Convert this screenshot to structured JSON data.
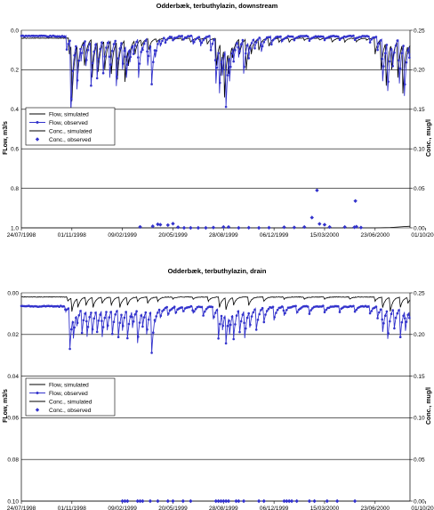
{
  "chart_data": [
    {
      "type": "line",
      "title": "Odderbæk, terbuthylazin, downstream",
      "ylabel": "FLow, m3/s",
      "y2label": "Conc., mug/l",
      "ylim": [
        0.0,
        1.0
      ],
      "y_inverted": true,
      "y_ticks": [
        "0.0",
        "0.2",
        "0.4",
        "0.6",
        "0.8",
        "1.0"
      ],
      "y2lim": [
        0.0,
        0.25
      ],
      "y2_ticks": [
        "0.25",
        "0.20",
        "0.15",
        "0.10",
        "0.05",
        "0.00"
      ],
      "x_ticks": [
        "24/07/1998",
        "01/11/1998",
        "09/02/1999",
        "20/05/1999",
        "28/08/1999",
        "06/12/1999",
        "15/03/2000",
        "23/06/2000",
        "01/10/2000"
      ],
      "grid": "horizontal",
      "legend_position": "left-middle",
      "series": [
        {
          "name": "Flow, simulated",
          "axis": "left",
          "color": "#000000",
          "baseline": 0.04,
          "events": [
            [
              95,
              0.12
            ],
            [
              100,
              0.36
            ],
            [
              112,
              0.22
            ],
            [
              125,
              0.18
            ],
            [
              140,
              0.24
            ],
            [
              152,
              0.21
            ],
            [
              165,
              0.2
            ],
            [
              178,
              0.22
            ],
            [
              190,
              0.25
            ],
            [
              205,
              0.26
            ],
            [
              212,
              0.18
            ],
            [
              225,
              0.12
            ],
            [
              238,
              0.08
            ],
            [
              252,
              0.1
            ],
            [
              268,
              0.06
            ],
            [
              285,
              0.05
            ],
            [
              300,
              0.05
            ],
            [
              318,
              0.05
            ],
            [
              335,
              0.06
            ],
            [
              352,
              0.05
            ],
            [
              368,
              0.07
            ],
            [
              386,
              0.18
            ],
            [
              395,
              0.23
            ],
            [
              402,
              0.34
            ],
            [
              410,
              0.22
            ],
            [
              418,
              0.14
            ],
            [
              432,
              0.12
            ],
            [
              445,
              0.2
            ],
            [
              455,
              0.12
            ],
            [
              470,
              0.1
            ],
            [
              490,
              0.08
            ],
            [
              510,
              0.06
            ],
            [
              530,
              0.06
            ],
            [
              560,
              0.05
            ],
            [
              590,
              0.05
            ],
            [
              615,
              0.06
            ],
            [
              640,
              0.06
            ],
            [
              663,
              0.06
            ],
            [
              683,
              0.05
            ],
            [
              700,
              0.12
            ],
            [
              712,
              0.2
            ],
            [
              722,
              0.28
            ],
            [
              733,
              0.2
            ],
            [
              745,
              0.24
            ],
            [
              755,
              0.32
            ],
            [
              765,
              0.12
            ]
          ]
        },
        {
          "name": "Flow, observed",
          "axis": "left",
          "color": "#3333cc",
          "baseline": 0.03,
          "events": [
            [
              90,
              0.1
            ],
            [
              98,
              0.42
            ],
            [
              110,
              0.3
            ],
            [
              118,
              0.16
            ],
            [
              128,
              0.18
            ],
            [
              138,
              0.28
            ],
            [
              150,
              0.24
            ],
            [
              162,
              0.22
            ],
            [
              175,
              0.24
            ],
            [
              188,
              0.28
            ],
            [
              200,
              0.2
            ],
            [
              208,
              0.24
            ],
            [
              215,
              0.16
            ],
            [
              222,
              0.12
            ],
            [
              232,
              0.24
            ],
            [
              240,
              0.1
            ],
            [
              250,
              0.18
            ],
            [
              258,
              0.27
            ],
            [
              265,
              0.14
            ],
            [
              275,
              0.08
            ],
            [
              285,
              0.06
            ],
            [
              300,
              0.05
            ],
            [
              320,
              0.05
            ],
            [
              340,
              0.07
            ],
            [
              355,
              0.08
            ],
            [
              375,
              0.1
            ],
            [
              385,
              0.27
            ],
            [
              392,
              0.32
            ],
            [
              398,
              0.23
            ],
            [
              405,
              0.39
            ],
            [
              412,
              0.26
            ],
            [
              420,
              0.16
            ],
            [
              430,
              0.14
            ],
            [
              440,
              0.22
            ],
            [
              450,
              0.14
            ],
            [
              462,
              0.09
            ],
            [
              475,
              0.11
            ],
            [
              495,
              0.07
            ],
            [
              515,
              0.06
            ],
            [
              540,
              0.05
            ],
            [
              570,
              0.05
            ],
            [
              600,
              0.05
            ],
            [
              630,
              0.05
            ],
            [
              660,
              0.05
            ],
            [
              690,
              0.06
            ],
            [
              705,
              0.1
            ],
            [
              715,
              0.26
            ],
            [
              725,
              0.31
            ],
            [
              735,
              0.18
            ],
            [
              748,
              0.27
            ],
            [
              758,
              0.33
            ],
            [
              768,
              0.14
            ]
          ]
        },
        {
          "name": "Conc., simulated",
          "axis": "right",
          "color": "#000000",
          "points": [
            [
              0,
              0.0
            ],
            [
              700,
              0.0
            ],
            [
              730,
              0.0005
            ],
            [
              750,
              0.0012
            ],
            [
              769,
              0.002
            ]
          ]
        },
        {
          "name": "Conc., observed",
          "axis": "right",
          "color": "#3333cc",
          "points": [
            [
              235,
              0.0012
            ],
            [
              260,
              0.002
            ],
            [
              270,
              0.0045
            ],
            [
              275,
              0.004
            ],
            [
              290,
              0.0035
            ],
            [
              300,
              0.0053
            ],
            [
              310,
              0.0008
            ],
            [
              322,
              0.0
            ],
            [
              335,
              0.0
            ],
            [
              350,
              0.0
            ],
            [
              365,
              0.0
            ],
            [
              380,
              0.0004
            ],
            [
              400,
              0.001
            ],
            [
              410,
              0.001
            ],
            [
              430,
              0.0
            ],
            [
              450,
              0.0002
            ],
            [
              470,
              0.0
            ],
            [
              490,
              0.0002
            ],
            [
              520,
              0.0008
            ],
            [
              540,
              0.0005
            ],
            [
              560,
              0.001
            ],
            [
              575,
              0.013
            ],
            [
              585,
              0.0475
            ],
            [
              590,
              0.005
            ],
            [
              600,
              0.004
            ],
            [
              610,
              0.001
            ],
            [
              640,
              0.001
            ],
            [
              659,
              0.0008
            ],
            [
              661,
              0.034
            ],
            [
              663,
              0.0015
            ],
            [
              672,
              0.0004
            ]
          ]
        }
      ]
    },
    {
      "type": "line",
      "title": "Odderbæk, terbuthylazin, drain",
      "ylabel": "FLow, m3/s",
      "y2label": "Conc., mug/l",
      "ylim": [
        0.0,
        0.1
      ],
      "y_inverted": true,
      "y_ticks": [
        "0.00",
        "0.02",
        "0.04",
        "0.06",
        "0.08",
        "0.10"
      ],
      "y2lim": [
        0.0,
        0.25
      ],
      "y2_ticks": [
        "0.25",
        "0.20",
        "0.15",
        "0.10",
        "0.05",
        "0.00"
      ],
      "x_ticks": [
        "24/07/1998",
        "01/11/1998",
        "09/02/1999",
        "20/05/1999",
        "28/08/1999",
        "06/12/1999",
        "15/03/2000",
        "23/06/2000",
        "01/10/2000"
      ],
      "grid": "horizontal",
      "legend_position": "left-middle",
      "series": [
        {
          "name": "Flow, simulated",
          "axis": "left",
          "color": "#000000",
          "baseline": 0.002,
          "events": [
            [
              92,
              0.004
            ],
            [
              100,
              0.009
            ],
            [
              112,
              0.007
            ],
            [
              128,
              0.006
            ],
            [
              142,
              0.007
            ],
            [
              160,
              0.005
            ],
            [
              178,
              0.006
            ],
            [
              195,
              0.007
            ],
            [
              210,
              0.006
            ],
            [
              230,
              0.004
            ],
            [
              250,
              0.005
            ],
            [
              270,
              0.004
            ],
            [
              300,
              0.003
            ],
            [
              340,
              0.003
            ],
            [
              370,
              0.004
            ],
            [
              392,
              0.007
            ],
            [
              405,
              0.008
            ],
            [
              420,
              0.006
            ],
            [
              450,
              0.006
            ],
            [
              480,
              0.004
            ],
            [
              520,
              0.003
            ],
            [
              560,
              0.003
            ],
            [
              600,
              0.003
            ],
            [
              650,
              0.003
            ],
            [
              700,
              0.004
            ],
            [
              715,
              0.007
            ],
            [
              730,
              0.009
            ],
            [
              750,
              0.007
            ],
            [
              765,
              0.005
            ]
          ]
        },
        {
          "name": "Flow, observed",
          "axis": "left",
          "color": "#3333cc",
          "baseline": 0.0065,
          "events": [
            [
              88,
              0.009
            ],
            [
              96,
              0.027
            ],
            [
              103,
              0.022
            ],
            [
              110,
              0.016
            ],
            [
              120,
              0.019
            ],
            [
              130,
              0.021
            ],
            [
              140,
              0.02
            ],
            [
              150,
              0.019
            ],
            [
              160,
              0.021
            ],
            [
              170,
              0.018
            ],
            [
              180,
              0.02
            ],
            [
              192,
              0.021
            ],
            [
              200,
              0.018
            ],
            [
              210,
              0.022
            ],
            [
              220,
              0.017
            ],
            [
              230,
              0.024
            ],
            [
              240,
              0.016
            ],
            [
              248,
              0.02
            ],
            [
              258,
              0.029
            ],
            [
              265,
              0.014
            ],
            [
              275,
              0.012
            ],
            [
              290,
              0.011
            ],
            [
              305,
              0.01
            ],
            [
              320,
              0.009
            ],
            [
              340,
              0.01
            ],
            [
              360,
              0.011
            ],
            [
              380,
              0.013
            ],
            [
              390,
              0.022
            ],
            [
              398,
              0.018
            ],
            [
              405,
              0.024
            ],
            [
              412,
              0.02
            ],
            [
              420,
              0.022
            ],
            [
              432,
              0.019
            ],
            [
              442,
              0.022
            ],
            [
              452,
              0.017
            ],
            [
              465,
              0.018
            ],
            [
              480,
              0.014
            ],
            [
              500,
              0.013
            ],
            [
              520,
              0.011
            ],
            [
              545,
              0.01
            ],
            [
              570,
              0.01
            ],
            [
              600,
              0.009
            ],
            [
              630,
              0.009
            ],
            [
              660,
              0.009
            ],
            [
              690,
              0.01
            ],
            [
              705,
              0.012
            ],
            [
              715,
              0.019
            ],
            [
              725,
              0.022
            ],
            [
              738,
              0.017
            ],
            [
              750,
              0.021
            ],
            [
              760,
              0.018
            ],
            [
              768,
              0.012
            ]
          ]
        },
        {
          "name": "Conc., simulated",
          "axis": "right",
          "color": "#000000",
          "points": [
            [
              0,
              0.0
            ],
            [
              769,
              0.0
            ]
          ]
        },
        {
          "name": "Conc., observed",
          "axis": "right",
          "color": "#3333cc",
          "points": [
            [
              200,
              0.0
            ],
            [
              205,
              0.0
            ],
            [
              210,
              0.0
            ],
            [
              230,
              0.0
            ],
            [
              235,
              0.0
            ],
            [
              240,
              0.0
            ],
            [
              255,
              0.0
            ],
            [
              270,
              0.0
            ],
            [
              290,
              0.0
            ],
            [
              300,
              0.0
            ],
            [
              320,
              0.0
            ],
            [
              335,
              0.0
            ],
            [
              385,
              0.0
            ],
            [
              390,
              0.0
            ],
            [
              395,
              0.0
            ],
            [
              400,
              0.0
            ],
            [
              405,
              0.0
            ],
            [
              410,
              0.0
            ],
            [
              425,
              0.0
            ],
            [
              430,
              0.0
            ],
            [
              440,
              0.0
            ],
            [
              470,
              0.0
            ],
            [
              480,
              0.0
            ],
            [
              520,
              0.0
            ],
            [
              525,
              0.0
            ],
            [
              530,
              0.0
            ],
            [
              535,
              0.0
            ],
            [
              545,
              0.0
            ],
            [
              570,
              0.0
            ],
            [
              580,
              0.0
            ],
            [
              605,
              0.0
            ],
            [
              625,
              0.0
            ],
            [
              660,
              0.0
            ]
          ]
        }
      ]
    }
  ]
}
